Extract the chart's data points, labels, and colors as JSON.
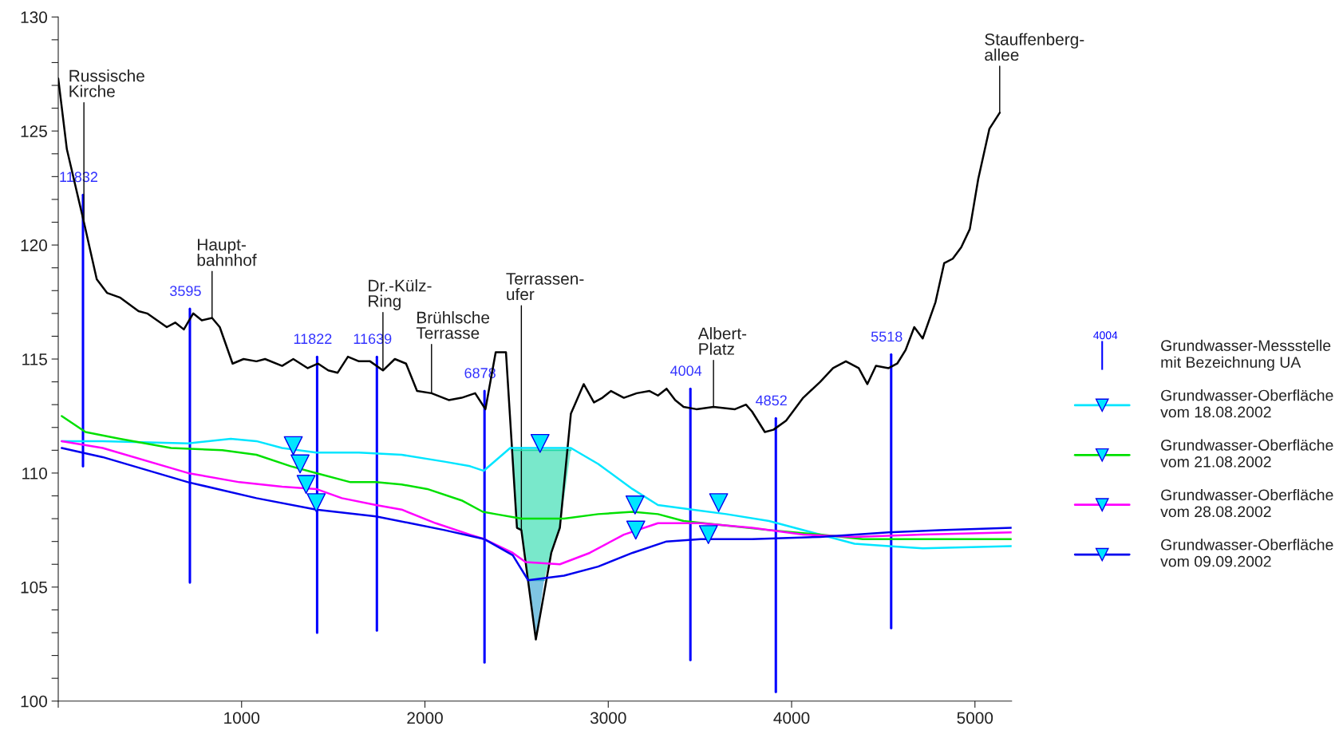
{
  "chart_data": {
    "type": "line",
    "xlim": [
      0,
      5200
    ],
    "ylim": [
      100,
      130
    ],
    "xticks": [
      {
        "value": 0,
        "label": null
      },
      1000,
      2000,
      3000,
      4000,
      5000
    ],
    "yticks": [
      100,
      {
        "value": 101,
        "label": null
      },
      {
        "value": 102,
        "label": null
      },
      {
        "value": 103,
        "label": null
      },
      {
        "value": 104,
        "label": null
      },
      105,
      {
        "value": 106,
        "label": null
      },
      {
        "value": 107,
        "label": null
      },
      {
        "value": 108,
        "label": null
      },
      {
        "value": 109,
        "label": null
      },
      110,
      {
        "value": 111,
        "label": null
      },
      {
        "value": 112,
        "label": null
      },
      {
        "value": 113,
        "label": null
      },
      {
        "value": 114,
        "label": null
      },
      115,
      {
        "value": 116,
        "label": null
      },
      {
        "value": 117,
        "label": null
      },
      {
        "value": 118,
        "label": null
      },
      {
        "value": 119,
        "label": null
      },
      120,
      {
        "value": 121,
        "label": null
      },
      {
        "value": 122,
        "label": null
      },
      {
        "value": 123,
        "label": null
      },
      {
        "value": 124,
        "label": null
      },
      125,
      {
        "value": 126,
        "label": null
      },
      {
        "value": 127,
        "label": null
      },
      {
        "value": 128,
        "label": null
      },
      {
        "value": 129,
        "label": null
      },
      130
    ],
    "grid": false,
    "legend": "right",
    "line_style": "solid",
    "series": [
      {
        "color": "#20d8a8",
        "x": [
          2475,
          2502,
          2526,
          2560,
          2650,
          2689,
          2736,
          2796
        ],
        "values": [
          111,
          111,
          111,
          111,
          111,
          111,
          111,
          111
        ],
        "lower": [
          111,
          107.6,
          107.5,
          105.3,
          105.3,
          106.5,
          107.6,
          111
        ],
        "upper": [
          111,
          111,
          111,
          111,
          111,
          111,
          111,
          111
        ]
      },
      {
        "color": "#2a9fd0",
        "x": [
          2560,
          2605,
          2650
        ],
        "values": [
          105.3,
          105.3,
          105.3
        ],
        "lower": [
          105.3,
          102.7,
          105.3
        ],
        "upper": [
          105.3,
          105.3,
          105.3
        ]
      },
      {
        "color": "#000000",
        "x": [
          0,
          47,
          140,
          210,
          266,
          336,
          438,
          485,
          592,
          638,
          685,
          736,
          783,
          839,
          881,
          951,
          1011,
          1081,
          1128,
          1221,
          1282,
          1361,
          1417,
          1473,
          1524,
          1580,
          1640,
          1701,
          1771,
          1836,
          1897,
          1957,
          2036,
          2130,
          2200,
          2274,
          2330,
          2386,
          2442,
          2502,
          2526,
          2605,
          2689,
          2736,
          2796,
          2866,
          2922,
          2968,
          3015,
          3085,
          3155,
          3225,
          3271,
          3318,
          3365,
          3411,
          3481,
          3574,
          3691,
          3751,
          3784,
          3854,
          3901,
          3970,
          4063,
          4156,
          4226,
          4296,
          4366,
          4413,
          4460,
          4529,
          4576,
          4622,
          4669,
          4715,
          4785,
          4832,
          4879,
          4925,
          4972,
          5018,
          5079,
          5135
        ],
        "values": [
          127.3,
          124.2,
          121.0,
          118.5,
          117.9,
          117.7,
          117.1,
          117.0,
          116.4,
          116.6,
          116.3,
          117.0,
          116.7,
          116.8,
          116.4,
          114.8,
          115.0,
          114.9,
          115.0,
          114.7,
          115.0,
          114.6,
          114.8,
          114.5,
          114.4,
          115.1,
          114.9,
          114.9,
          114.5,
          115.0,
          114.8,
          113.6,
          113.5,
          113.2,
          113.3,
          113.5,
          112.8,
          115.3,
          115.3,
          107.6,
          107.5,
          102.7,
          106.5,
          107.6,
          112.6,
          113.9,
          113.1,
          113.3,
          113.6,
          113.3,
          113.5,
          113.6,
          113.4,
          113.7,
          113.2,
          112.9,
          112.8,
          112.9,
          112.8,
          113.0,
          112.7,
          111.8,
          111.9,
          112.3,
          113.3,
          114.0,
          114.6,
          114.9,
          114.6,
          113.9,
          114.7,
          114.6,
          114.8,
          115.4,
          116.4,
          115.9,
          117.5,
          119.2,
          119.4,
          119.9,
          120.7,
          122.9,
          125.1,
          125.8
        ]
      },
      {
        "name": "Grundwasser-Oberfläche\nvom 18.08.2002",
        "color": "#00e5ff",
        "x": [
          19,
          242,
          708,
          941,
          1081,
          1221,
          1407,
          1640,
          1873,
          2106,
          2246,
          2321,
          2465,
          2796,
          2945,
          3132,
          3271,
          3458,
          3644,
          3877,
          4110,
          4343,
          4529,
          4715,
          5200
        ],
        "values": [
          111.4,
          111.4,
          111.3,
          111.5,
          111.4,
          111.1,
          110.9,
          110.9,
          110.8,
          110.5,
          110.3,
          110.1,
          111.1,
          111.1,
          110.4,
          109.3,
          108.6,
          108.4,
          108.2,
          107.9,
          107.4,
          106.9,
          106.8,
          106.7,
          106.8
        ]
      },
      {
        "name": "Grundwasser-Oberfläche\nvom 21.08.2002",
        "color": "#00e000",
        "x": [
          19,
          149,
          336,
          615,
          895,
          1081,
          1268,
          1407,
          1594,
          1733,
          1873,
          2013,
          2200,
          2316,
          2386,
          2526,
          2759,
          2945,
          3132,
          3271,
          3411,
          3644,
          3877,
          4156,
          4389,
          4808,
          5200
        ],
        "values": [
          112.5,
          111.8,
          111.5,
          111.1,
          111.0,
          110.8,
          110.3,
          110.0,
          109.6,
          109.6,
          109.5,
          109.3,
          108.8,
          108.3,
          108.2,
          108.0,
          108.0,
          108.2,
          108.3,
          108.2,
          107.9,
          107.7,
          107.5,
          107.3,
          107.1,
          107.1,
          107.1
        ]
      },
      {
        "name": "Grundwasser-Oberfläche\nvom 28.08.2002",
        "color": "#ff00ff",
        "x": [
          19,
          242,
          708,
          988,
          1221,
          1407,
          1547,
          1733,
          1873,
          2059,
          2246,
          2325,
          2479,
          2549,
          2736,
          2899,
          3085,
          3271,
          3504,
          3784,
          4063,
          4343,
          4715,
          5200
        ],
        "values": [
          111.4,
          111.1,
          110.0,
          109.6,
          109.4,
          109.3,
          108.9,
          108.6,
          108.4,
          107.8,
          107.3,
          107.1,
          106.5,
          106.1,
          106.0,
          106.5,
          107.3,
          107.8,
          107.8,
          107.6,
          107.3,
          107.2,
          107.3,
          107.4
        ]
      },
      {
        "name": "Grundwasser-Oberfläche\nvom 09.09.2002",
        "color": "#0000ee",
        "x": [
          19,
          242,
          708,
          1081,
          1407,
          1733,
          1920,
          2106,
          2325,
          2479,
          2563,
          2759,
          2945,
          3132,
          3318,
          3504,
          3784,
          4156,
          4529,
          4808,
          5200
        ],
        "values": [
          111.1,
          110.7,
          109.6,
          108.9,
          108.4,
          108.1,
          107.8,
          107.5,
          107.1,
          106.4,
          105.3,
          105.5,
          105.9,
          106.5,
          107.0,
          107.1,
          107.1,
          107.2,
          107.4,
          107.5,
          107.6
        ]
      },
      {
        "type": "line",
        "name": "11832",
        "color": "#0000ff",
        "x": [
          135,
          135
        ],
        "values": [
          122.2,
          110.3
        ]
      },
      {
        "type": "line",
        "name": "3595",
        "color": "#0000ff",
        "x": [
          718,
          718
        ],
        "values": [
          117.2,
          105.2
        ]
      },
      {
        "type": "line",
        "name": "11822",
        "color": "#0000ff",
        "x": [
          1412,
          1412
        ],
        "values": [
          115.1,
          103.0
        ]
      },
      {
        "type": "line",
        "name": "11639",
        "color": "#0000ff",
        "x": [
          1738,
          1738
        ],
        "values": [
          115.1,
          103.1
        ]
      },
      {
        "type": "line",
        "name": "6878",
        "color": "#0000ff",
        "x": [
          2325,
          2325
        ],
        "values": [
          113.6,
          101.7
        ]
      },
      {
        "type": "line",
        "name": "4004",
        "color": "#0000ff",
        "x": [
          3448,
          3448
        ],
        "values": [
          113.7,
          101.8
        ]
      },
      {
        "type": "line",
        "name": "4852",
        "color": "#0000ff",
        "x": [
          3914,
          3914
        ],
        "values": [
          112.4,
          100.4
        ]
      },
      {
        "type": "line",
        "name": "5518",
        "color": "#0000ff",
        "x": [
          4543,
          4543
        ],
        "values": [
          115.2,
          103.2
        ]
      },
      {
        "type": "scatter",
        "color": "#00e5ff",
        "marker": "triangle",
        "x": [
          1282,
          2628,
          3602,
          1319,
          3146,
          1352,
          3150,
          1407,
          3546
        ],
        "values": [
          111.2,
          111.3,
          108.7,
          110.4,
          108.6,
          109.5,
          107.5,
          108.7,
          107.3
        ]
      }
    ],
    "annotations": [
      {
        "text": "Russische\nKirche",
        "x": 140,
        "y": 121.0
      },
      {
        "text": "Haupt-\nbahnhof",
        "x": 839,
        "y": 116.8
      },
      {
        "text": "Dr.-Külz-\nRing",
        "x": 1771,
        "y": 114.5
      },
      {
        "text": "Brühlsche\nTerrasse",
        "x": 2036,
        "y": 113.5
      },
      {
        "text": "Terrassen-\nufer",
        "x": 2526,
        "y": 107.5
      },
      {
        "text": "Albert-\nPlatz",
        "x": 3574,
        "y": 112.9
      },
      {
        "text": "Stauffenberg-\nallee",
        "x": 5135,
        "y": 125.8
      },
      "4004",
      "Grundwasser-Messstelle\nmit Bezeichnung UA"
    ]
  }
}
